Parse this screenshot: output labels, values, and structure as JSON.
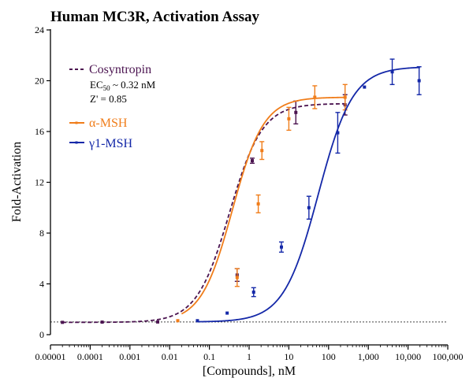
{
  "chart_data": {
    "type": "scatter",
    "title": "Human MC3R, Activation Assay",
    "xlabel": "[Compounds], nM",
    "ylabel": "Fold-Activation",
    "xscale": "log",
    "xlim": [
      1e-05,
      100000
    ],
    "ylim": [
      0,
      24
    ],
    "x_ticks": [
      1e-05,
      0.0001,
      0.001,
      0.01,
      0.1,
      1,
      10,
      100,
      1000,
      10000,
      100000
    ],
    "x_tick_labels": [
      "0.00001",
      "0.0001",
      "0.001",
      "0.01",
      "0.1",
      "1",
      "10",
      "100",
      "1,000",
      "10,000",
      "100,000"
    ],
    "y_ticks": [
      0,
      4,
      8,
      12,
      16,
      20,
      24
    ],
    "y_tick_labels": [
      "0",
      "4",
      "8",
      "12",
      "16",
      "20",
      "24"
    ],
    "baseline": 1,
    "legend_position": "top-left",
    "annotations": {
      "ec50_prefix": "EC",
      "ec50_sub": "50",
      "ec50_value": " ~ 0.32 nM",
      "z_prime": "Z' = 0.85"
    },
    "series": [
      {
        "name": "Cosyntropin",
        "color": "#4b1450",
        "line_style": "dashed",
        "curve": {
          "bottom": 0.97,
          "top": 18.2,
          "ec50": 0.32,
          "hill": 1.05,
          "x_start": 2e-05,
          "x_end": 250
        },
        "points": [
          {
            "x": 2e-05,
            "y": 0.97,
            "err": 0.05
          },
          {
            "x": 0.0002,
            "y": 0.99,
            "err": 0.05
          },
          {
            "x": 0.005,
            "y": 1.0,
            "err": 0.05
          },
          {
            "x": 0.5,
            "y": 4.7,
            "err": 0.5
          },
          {
            "x": 1.2,
            "y": 13.7,
            "err": 0.2
          },
          {
            "x": 15,
            "y": 17.5,
            "err": 0.9
          },
          {
            "x": 260,
            "y": 18.1,
            "err": 0.8
          }
        ]
      },
      {
        "name": "α-MSH",
        "color": "#f07d1a",
        "line_style": "solid",
        "curve": {
          "bottom": 0.97,
          "top": 18.7,
          "ec50": 0.38,
          "hill": 1.1,
          "x_start": 0.02,
          "x_end": 250
        },
        "points": [
          {
            "x": 0.016,
            "y": 1.1,
            "err": 0.05
          },
          {
            "x": 0.5,
            "y": 4.5,
            "err": 0.7
          },
          {
            "x": 1.7,
            "y": 10.3,
            "err": 0.7
          },
          {
            "x": 2.1,
            "y": 14.5,
            "err": 0.7
          },
          {
            "x": 10,
            "y": 17.0,
            "err": 0.9
          },
          {
            "x": 45,
            "y": 18.7,
            "err": 0.9
          },
          {
            "x": 260,
            "y": 18.7,
            "err": 1.0
          }
        ]
      },
      {
        "name": "γ1-MSH",
        "color": "#1428a8",
        "line_style": "solid",
        "curve": {
          "bottom": 1.0,
          "top": 21.1,
          "ec50": 55,
          "hill": 1.0,
          "x_start": 0.05,
          "x_end": 20000
        },
        "points": [
          {
            "x": 0.05,
            "y": 1.1,
            "err": 0.05
          },
          {
            "x": 0.28,
            "y": 1.7,
            "err": 0.1
          },
          {
            "x": 1.3,
            "y": 3.35,
            "err": 0.35
          },
          {
            "x": 6.5,
            "y": 6.9,
            "err": 0.4
          },
          {
            "x": 32,
            "y": 10.0,
            "err": 0.9
          },
          {
            "x": 170,
            "y": 15.9,
            "err": 1.6
          },
          {
            "x": 800,
            "y": 19.5,
            "err": 0.05
          },
          {
            "x": 4000,
            "y": 20.7,
            "err": 1.0
          },
          {
            "x": 19000,
            "y": 20.0,
            "err": 1.1
          }
        ]
      }
    ]
  }
}
